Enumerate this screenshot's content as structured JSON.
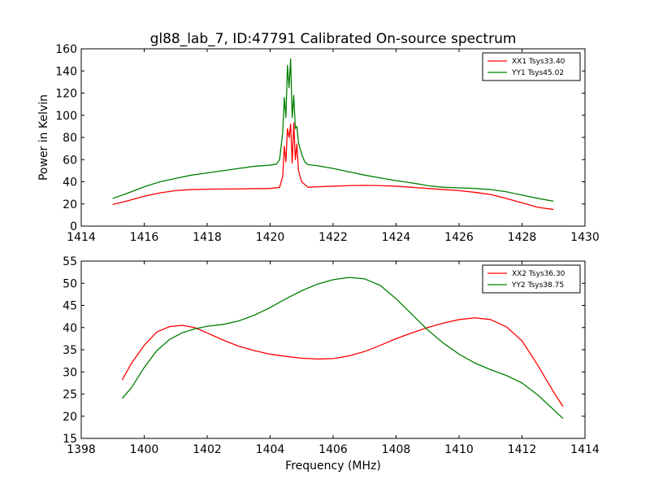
{
  "chart_data": [
    {
      "type": "line",
      "title": "gl88_lab_7, ID:47791 Calibrated On-source spectrum",
      "xlabel": "",
      "ylabel": "Power in Kelvin",
      "xlim": [
        1414,
        1430
      ],
      "ylim": [
        0,
        160
      ],
      "xticks": [
        1414,
        1416,
        1418,
        1420,
        1422,
        1424,
        1426,
        1428,
        1430
      ],
      "yticks": [
        0,
        20,
        40,
        60,
        80,
        100,
        120,
        140,
        160
      ],
      "grid": false,
      "legend_position": "top-right",
      "series": [
        {
          "name": "XX1 Tsys33.40",
          "color": "#ff0000",
          "points": [
            [
              1415.0,
              19.5
            ],
            [
              1415.5,
              23
            ],
            [
              1416.0,
              27
            ],
            [
              1416.5,
              30
            ],
            [
              1417.0,
              32
            ],
            [
              1417.5,
              33
            ],
            [
              1418.0,
              33.3
            ],
            [
              1418.5,
              33.5
            ],
            [
              1419.0,
              33.6
            ],
            [
              1419.5,
              33.8
            ],
            [
              1420.0,
              34
            ],
            [
              1420.3,
              35
            ],
            [
              1420.4,
              45
            ],
            [
              1420.45,
              72
            ],
            [
              1420.5,
              58
            ],
            [
              1420.55,
              88
            ],
            [
              1420.6,
              80
            ],
            [
              1420.65,
              92
            ],
            [
              1420.7,
              57
            ],
            [
              1420.75,
              93
            ],
            [
              1420.8,
              60
            ],
            [
              1420.85,
              74
            ],
            [
              1420.9,
              50
            ],
            [
              1421.0,
              40
            ],
            [
              1421.2,
              35
            ],
            [
              1421.5,
              35.5
            ],
            [
              1422.0,
              36
            ],
            [
              1422.5,
              36.5
            ],
            [
              1423.0,
              36.8
            ],
            [
              1423.5,
              36.5
            ],
            [
              1424.0,
              36
            ],
            [
              1424.5,
              35
            ],
            [
              1425.0,
              34
            ],
            [
              1425.5,
              33
            ],
            [
              1426.0,
              32
            ],
            [
              1426.5,
              30.5
            ],
            [
              1427.0,
              28.5
            ],
            [
              1427.5,
              25
            ],
            [
              1428.0,
              21
            ],
            [
              1428.5,
              17
            ],
            [
              1429.0,
              15
            ]
          ]
        },
        {
          "name": "YY1 Tsys45.02",
          "color": "#008000",
          "points": [
            [
              1415.0,
              25
            ],
            [
              1415.5,
              30
            ],
            [
              1416.0,
              35.5
            ],
            [
              1416.5,
              40
            ],
            [
              1417.0,
              43
            ],
            [
              1417.5,
              46
            ],
            [
              1418.0,
              48
            ],
            [
              1418.5,
              50
            ],
            [
              1419.0,
              52
            ],
            [
              1419.5,
              54
            ],
            [
              1420.0,
              55
            ],
            [
              1420.2,
              56
            ],
            [
              1420.3,
              60
            ],
            [
              1420.4,
              85
            ],
            [
              1420.45,
              116
            ],
            [
              1420.5,
              98
            ],
            [
              1420.55,
              145
            ],
            [
              1420.6,
              125
            ],
            [
              1420.65,
              151
            ],
            [
              1420.7,
              98
            ],
            [
              1420.75,
              118
            ],
            [
              1420.8,
              88
            ],
            [
              1420.85,
              90
            ],
            [
              1420.9,
              75
            ],
            [
              1421.0,
              65
            ],
            [
              1421.1,
              58
            ],
            [
              1421.2,
              55.5
            ],
            [
              1421.5,
              54.5
            ],
            [
              1422.0,
              52
            ],
            [
              1422.5,
              49
            ],
            [
              1423.0,
              46
            ],
            [
              1423.5,
              43.5
            ],
            [
              1424.0,
              41
            ],
            [
              1424.5,
              39
            ],
            [
              1425.0,
              36.5
            ],
            [
              1425.5,
              35
            ],
            [
              1426.0,
              34.5
            ],
            [
              1426.5,
              34
            ],
            [
              1427.0,
              33
            ],
            [
              1427.5,
              31
            ],
            [
              1428.0,
              28
            ],
            [
              1428.5,
              25
            ],
            [
              1429.0,
              22.5
            ]
          ]
        }
      ]
    },
    {
      "type": "line",
      "title": "",
      "xlabel": "Frequency (MHz)",
      "ylabel": "",
      "xlim": [
        1398,
        1414
      ],
      "ylim": [
        15,
        55
      ],
      "xticks": [
        1398,
        1400,
        1402,
        1404,
        1406,
        1408,
        1410,
        1412,
        1414
      ],
      "yticks": [
        15,
        20,
        25,
        30,
        35,
        40,
        45,
        50,
        55
      ],
      "grid": false,
      "legend_position": "top-right",
      "series": [
        {
          "name": "XX2 Tsys36.30",
          "color": "#ff0000",
          "points": [
            [
              1399.3,
              28.2
            ],
            [
              1399.6,
              32
            ],
            [
              1400.0,
              36
            ],
            [
              1400.4,
              39
            ],
            [
              1400.8,
              40.2
            ],
            [
              1401.2,
              40.5
            ],
            [
              1401.6,
              40
            ],
            [
              1402.0,
              38.8
            ],
            [
              1402.5,
              37.2
            ],
            [
              1403.0,
              35.8
            ],
            [
              1403.5,
              34.8
            ],
            [
              1404.0,
              34
            ],
            [
              1404.5,
              33.5
            ],
            [
              1405.0,
              33.1
            ],
            [
              1405.5,
              32.9
            ],
            [
              1406.0,
              33
            ],
            [
              1406.5,
              33.6
            ],
            [
              1407.0,
              34.6
            ],
            [
              1407.5,
              36
            ],
            [
              1408.0,
              37.5
            ],
            [
              1408.5,
              38.8
            ],
            [
              1409.0,
              40
            ],
            [
              1409.5,
              41
            ],
            [
              1410.0,
              41.8
            ],
            [
              1410.5,
              42.2
            ],
            [
              1411.0,
              41.8
            ],
            [
              1411.5,
              40.2
            ],
            [
              1412.0,
              37
            ],
            [
              1412.5,
              31.5
            ],
            [
              1413.0,
              25.5
            ],
            [
              1413.3,
              22.2
            ]
          ]
        },
        {
          "name": "YY2 Tsys38.75",
          "color": "#008000",
          "points": [
            [
              1399.3,
              24
            ],
            [
              1399.6,
              26.5
            ],
            [
              1400.0,
              31
            ],
            [
              1400.4,
              34.8
            ],
            [
              1400.8,
              37.3
            ],
            [
              1401.2,
              38.8
            ],
            [
              1401.6,
              39.7
            ],
            [
              1402.0,
              40.3
            ],
            [
              1402.5,
              40.7
            ],
            [
              1403.0,
              41.5
            ],
            [
              1403.5,
              42.8
            ],
            [
              1404.0,
              44.5
            ],
            [
              1404.5,
              46.5
            ],
            [
              1405.0,
              48.3
            ],
            [
              1405.5,
              49.8
            ],
            [
              1406.0,
              50.8
            ],
            [
              1406.5,
              51.3
            ],
            [
              1407.0,
              51
            ],
            [
              1407.5,
              49.5
            ],
            [
              1408.0,
              46.5
            ],
            [
              1408.5,
              43
            ],
            [
              1409.0,
              39.5
            ],
            [
              1409.5,
              36.5
            ],
            [
              1410.0,
              34
            ],
            [
              1410.5,
              32
            ],
            [
              1411.0,
              30.5
            ],
            [
              1411.5,
              29.2
            ],
            [
              1412.0,
              27.5
            ],
            [
              1412.5,
              24.8
            ],
            [
              1413.0,
              21.5
            ],
            [
              1413.3,
              19.5
            ]
          ]
        }
      ]
    }
  ]
}
